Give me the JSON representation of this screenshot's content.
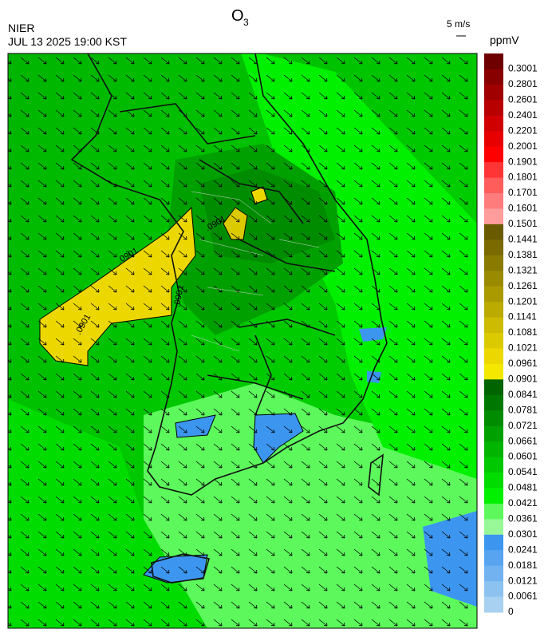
{
  "header": {
    "title": "O",
    "title_subscript": "3",
    "agency": "NIER",
    "datetime": "JUL 13 2025 19:00 KST",
    "wind_scale": "5 m/s",
    "unit": "ppmV"
  },
  "map": {
    "contour_label": ".0901"
  },
  "colorbar": {
    "levels": [
      0.3001,
      0.2801,
      0.2601,
      0.2401,
      0.2201,
      0.2001,
      0.1901,
      0.1801,
      0.1701,
      0.1601,
      0.1501,
      0.1441,
      0.1381,
      0.1321,
      0.1261,
      0.1201,
      0.1141,
      0.1081,
      0.1021,
      0.0961,
      0.0901,
      0.0841,
      0.0781,
      0.0721,
      0.0661,
      0.0601,
      0.0541,
      0.0481,
      0.0421,
      0.0361,
      0.0301,
      0.0241,
      0.0181,
      0.0121,
      0.0061,
      0
    ],
    "colors": [
      "#6e0000",
      "#880000",
      "#a00000",
      "#b80000",
      "#d00000",
      "#e80000",
      "#ff0000",
      "#ff3434",
      "#ff5c5c",
      "#ff7c7c",
      "#ff9c9c",
      "#6a5a00",
      "#7a6a00",
      "#8a7a00",
      "#9a8a00",
      "#aa9a00",
      "#bbaa00",
      "#ccbb00",
      "#dcca00",
      "#ecd800",
      "#f5e800",
      "#006400",
      "#007800",
      "#008c00",
      "#00a000",
      "#00b400",
      "#00c800",
      "#00dc00",
      "#00f000",
      "#5cf85c",
      "#98f898",
      "#3c96f0",
      "#58a4f0",
      "#72b2f0",
      "#8cc2f0",
      "#a8d0f0"
    ]
  }
}
